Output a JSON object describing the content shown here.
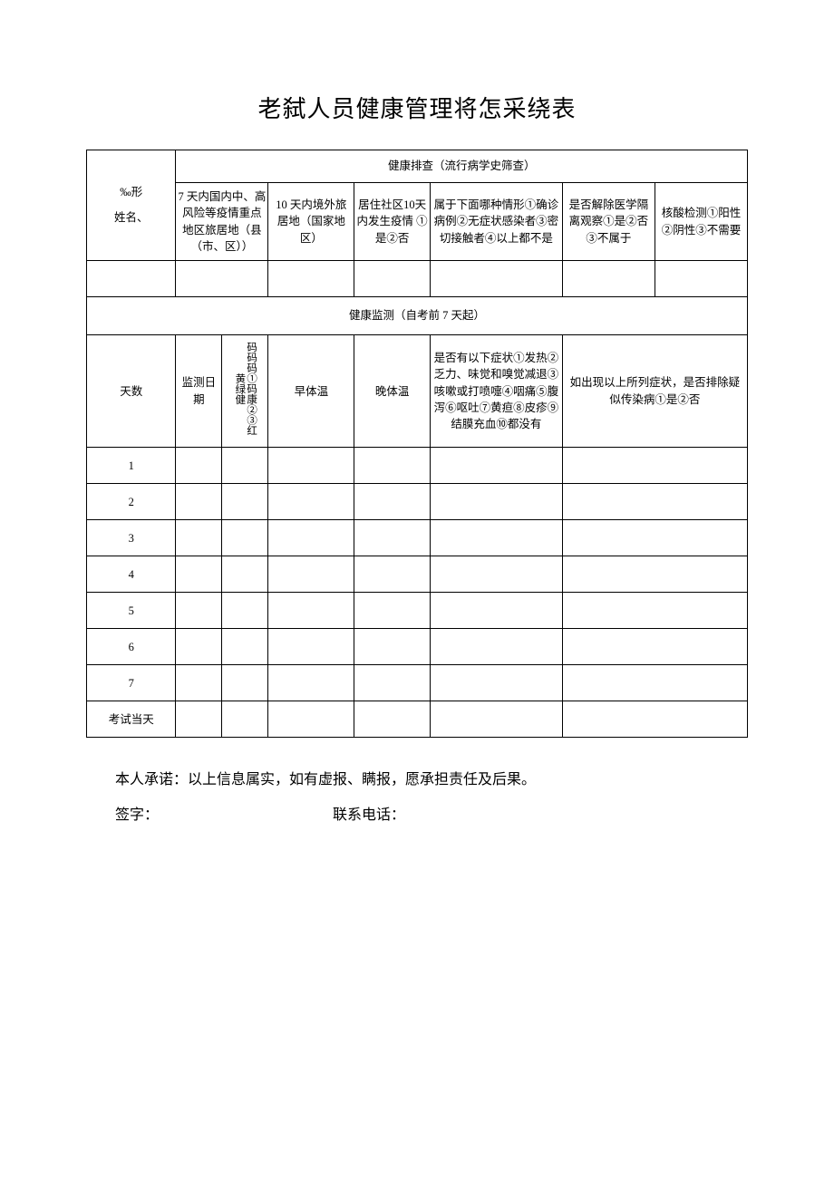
{
  "title": "老弑人员健康管理将怎采绕表",
  "leftHeader": {
    "line1": "‰形",
    "line2": "姓名、"
  },
  "screening": {
    "header": "健康排查（流行病学史筛查）",
    "cols": {
      "c1": "7 天内国内中、高风险等疫情重点地区旅居地（县（市、区））",
      "c2": "10 天内境外旅居地（国家地区）",
      "c3": "居住社区10天内发生疫情 ①是②否",
      "c4": "属于下面哪种情形①确诊病例②无症状感染者③密切接触者④以上都不是",
      "c5": "是否解除医学隔离观察①是②否③不属于",
      "c6": "核酸检测①阳性②阴性③不需要"
    }
  },
  "monitoring": {
    "header": "健康监测（自考前 7 天起）",
    "cols": {
      "days": "天数",
      "date": "监测日期",
      "code": "码码码①码康②③红黄绿健",
      "morning": "早体温",
      "evening": "晚体温",
      "symptoms": "是否有以下症状①发热②乏力、味觉和嗅觉减退③咳嗽或打喷嚏④咽痛⑤腹泻⑥呕吐⑦黄疸⑧皮疹⑨结膜充血⑩都没有",
      "exclude": "如出现以上所列症状，是否排除疑似传染病①是②否"
    },
    "rows": [
      "1",
      "2",
      "3",
      "4",
      "5",
      "6",
      "7",
      "考试当天"
    ]
  },
  "footer": {
    "promise": "本人承诺：以上信息属实，如有虚报、瞒报，愿承担责任及后果。",
    "signLabel": "签字：",
    "phoneLabel": "联系电话："
  },
  "widths": {
    "c1": "13.5%",
    "c2": "7%",
    "c3": "7%",
    "c4": "13%",
    "c5": "11.5%",
    "c6": "20%",
    "c7": "14%",
    "c8": "14%"
  }
}
